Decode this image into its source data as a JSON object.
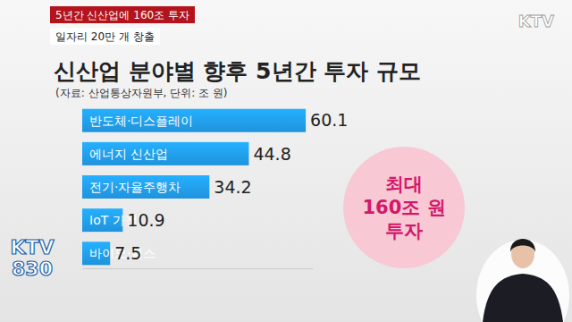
{
  "chart_data": {
    "type": "bar",
    "orientation": "horizontal",
    "title": "신산업 분야별 향후 5년간 투자 규모",
    "subtitle": "(자료: 산업통상자원부, 단위: 조 원)",
    "categories": [
      "반도체·디스플레이",
      "에너지 신산업",
      "전기·자율주행차",
      "IoT 가전",
      "바이오·헬스"
    ],
    "values": [
      60.1,
      44.8,
      34.2,
      10.9,
      7.5
    ],
    "color": "#1f93dc",
    "xlim": [
      0,
      62
    ],
    "tick_labels": false,
    "data_labels": true,
    "annotation": "최대\n160조 원\n투자"
  },
  "header": {
    "headline": "5년간 신산업에 160조 투자",
    "subheadline": "일자리 20만 개 창출"
  },
  "channel": {
    "logo": "KTV",
    "program": "KTV\n830"
  }
}
